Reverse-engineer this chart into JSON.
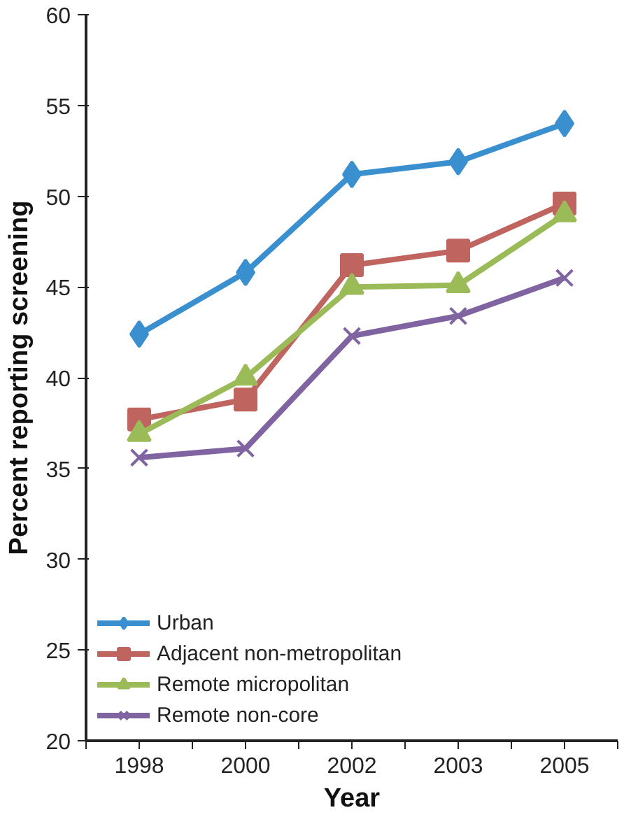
{
  "chart_data": {
    "type": "line",
    "xlabel": "Year",
    "ylabel": "Percent reporting screening",
    "categories": [
      "1998",
      "2000",
      "2002",
      "2003",
      "2005"
    ],
    "ylim": [
      20,
      60
    ],
    "yticks": [
      20,
      25,
      30,
      35,
      40,
      45,
      50,
      55,
      60
    ],
    "grid": false,
    "legend": "bottom left",
    "line_style": "solid",
    "series": [
      {
        "name": "Urban",
        "color": "#3a8fcf",
        "marker": "diamond",
        "values": [
          42.4,
          45.8,
          51.2,
          51.9,
          54.0
        ]
      },
      {
        "name": "Adjacent non-metropolitan",
        "color": "#c0645f",
        "marker": "square",
        "values": [
          37.7,
          38.8,
          46.2,
          47.0,
          49.6
        ]
      },
      {
        "name": "Remote micropolitan",
        "color": "#9bbb59",
        "marker": "triangle",
        "values": [
          36.9,
          40.0,
          45.0,
          45.1,
          49.0
        ]
      },
      {
        "name": "Remote non-core",
        "color": "#8064a2",
        "marker": "x",
        "values": [
          35.6,
          36.1,
          42.3,
          43.4,
          45.5
        ]
      }
    ]
  }
}
